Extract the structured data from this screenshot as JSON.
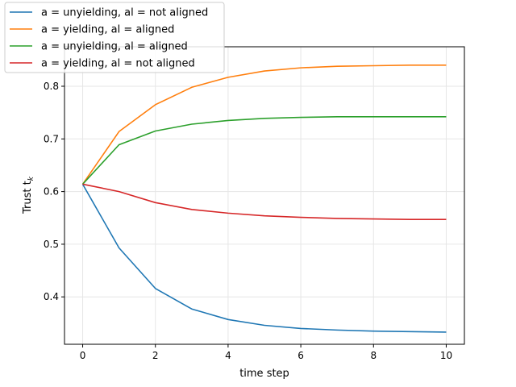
{
  "chart_data": {
    "type": "line",
    "title": "",
    "xlabel": "time step",
    "ylabel": "Trust t",
    "ylabel_subscript": "k",
    "xlim": [
      -0.5,
      10.5
    ],
    "ylim": [
      0.31,
      0.875
    ],
    "x_ticks": [
      0,
      2,
      4,
      6,
      8,
      10
    ],
    "y_ticks": [
      0.4,
      0.5,
      0.6,
      0.7,
      0.8
    ],
    "grid": true,
    "legend_position": "top-left",
    "x": [
      0,
      1,
      2,
      3,
      4,
      5,
      6,
      7,
      8,
      9,
      10
    ],
    "series": [
      {
        "name": "a = unyielding, al = not aligned",
        "color": "#1f77b4",
        "values": [
          0.614,
          0.493,
          0.416,
          0.377,
          0.357,
          0.346,
          0.34,
          0.337,
          0.335,
          0.334,
          0.333
        ]
      },
      {
        "name": "a = yielding, al = aligned",
        "color": "#ff7f0e",
        "values": [
          0.614,
          0.714,
          0.765,
          0.798,
          0.817,
          0.829,
          0.835,
          0.838,
          0.839,
          0.84,
          0.84
        ]
      },
      {
        "name": "a = unyielding, al = aligned",
        "color": "#2ca02c",
        "values": [
          0.614,
          0.689,
          0.715,
          0.728,
          0.735,
          0.739,
          0.741,
          0.742,
          0.742,
          0.742,
          0.742
        ]
      },
      {
        "name": "a = yielding, al = not aligned",
        "color": "#d62728",
        "values": [
          0.614,
          0.6,
          0.579,
          0.566,
          0.559,
          0.554,
          0.551,
          0.549,
          0.548,
          0.547,
          0.547
        ]
      }
    ]
  }
}
